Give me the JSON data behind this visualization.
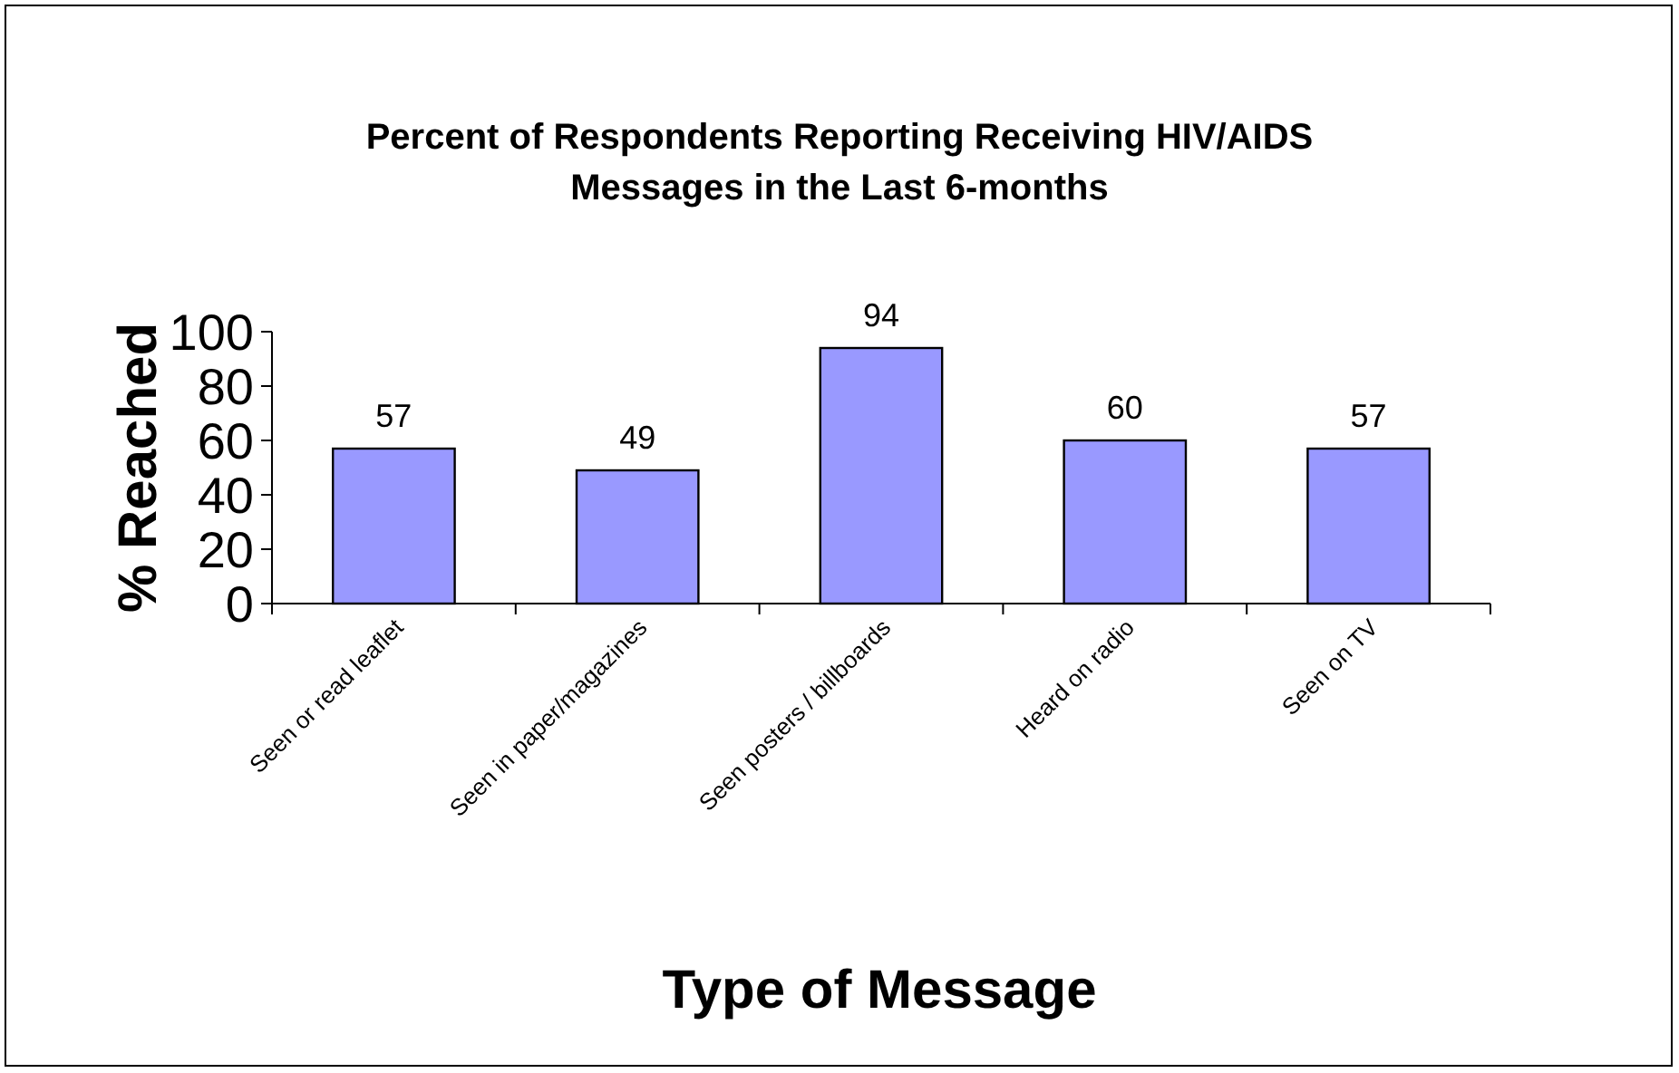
{
  "chart_data": {
    "type": "bar",
    "title": "Percent of Respondents Reporting Receiving HIV/AIDS Messages in the Last 6-months",
    "xlabel": "Type of Message",
    "ylabel": "% Reached",
    "categories": [
      "Seen or read leaflet",
      "Seen in paper/magazines",
      "Seen posters / billboards",
      "Heard on radio",
      "Seen on TV"
    ],
    "values": [
      57,
      49,
      94,
      60,
      57
    ],
    "color": "#9999ff",
    "data_labels": true,
    "ylim": [
      0,
      100
    ],
    "yticks": [
      0,
      20,
      40,
      60,
      80,
      100
    ],
    "grid": false
  }
}
